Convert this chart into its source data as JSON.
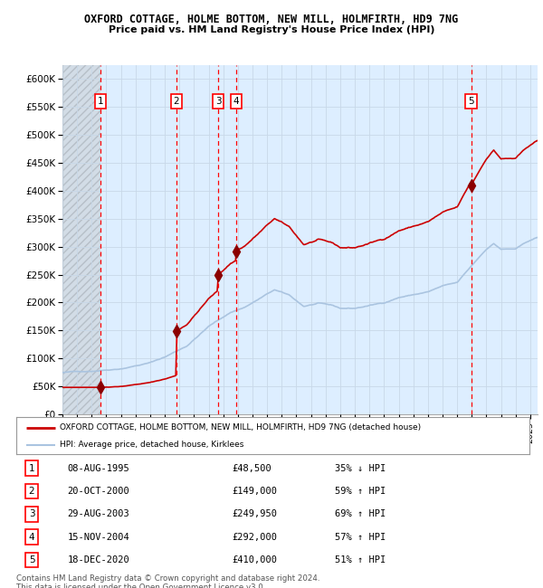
{
  "title1": "OXFORD COTTAGE, HOLME BOTTOM, NEW MILL, HOLMFIRTH, HD9 7NG",
  "title2": "Price paid vs. HM Land Registry's House Price Index (HPI)",
  "ylim": [
    0,
    625000
  ],
  "yticks": [
    0,
    50000,
    100000,
    150000,
    200000,
    250000,
    300000,
    350000,
    400000,
    450000,
    500000,
    550000,
    600000
  ],
  "ytick_labels": [
    "£0",
    "£50K",
    "£100K",
    "£150K",
    "£200K",
    "£250K",
    "£300K",
    "£350K",
    "£400K",
    "£450K",
    "£500K",
    "£550K",
    "£600K"
  ],
  "xlim_start": 1993.0,
  "xlim_end": 2025.5,
  "sale_dates": [
    1995.6,
    2000.8,
    2003.66,
    2004.88,
    2020.96
  ],
  "sale_prices": [
    48500,
    149000,
    249950,
    292000,
    410000
  ],
  "sale_labels": [
    "1",
    "2",
    "3",
    "4",
    "5"
  ],
  "sale_date_strings": [
    "08-AUG-1995",
    "20-OCT-2000",
    "29-AUG-2003",
    "15-NOV-2004",
    "18-DEC-2020"
  ],
  "sale_price_strings": [
    "£48,500",
    "£149,000",
    "£249,950",
    "£292,000",
    "£410,000"
  ],
  "sale_hpi_strings": [
    "35% ↓ HPI",
    "59% ↑ HPI",
    "69% ↑ HPI",
    "57% ↑ HPI",
    "51% ↑ HPI"
  ],
  "hpi_line_color": "#aac4e0",
  "price_line_color": "#cc0000",
  "sale_dot_color": "#8b0000",
  "grid_color": "#c8d8e8",
  "chart_bg_color": "#ddeeff",
  "hatch_color": "#c0c0c0",
  "legend_label_price": "OXFORD COTTAGE, HOLME BOTTOM, NEW MILL, HOLMFIRTH, HD9 7NG (detached house)",
  "legend_label_hpi": "HPI: Average price, detached house, Kirklees",
  "footnote": "Contains HM Land Registry data © Crown copyright and database right 2024.\nThis data is licensed under the Open Government Licence v3.0."
}
